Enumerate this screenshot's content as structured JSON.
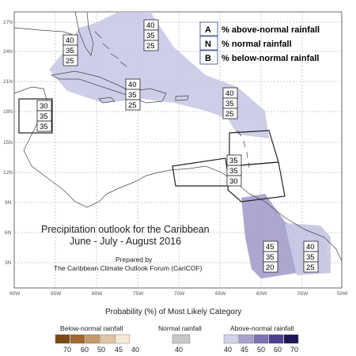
{
  "map": {
    "title": "Precipitation outlook for the Caribbean",
    "period": "June - July - August 2016",
    "prepared_by": "Prepared by",
    "organization": "The Caribbean Climate Outlook Forum (CariCOF)",
    "lat_ticks": [
      "27N",
      "24N",
      "21N",
      "18N",
      "15N",
      "12N",
      "9N",
      "6N",
      "3N"
    ],
    "lon_ticks": [
      "90W",
      "85W",
      "80W",
      "75W",
      "70W",
      "65W",
      "60W",
      "55W",
      "50W"
    ],
    "colors": {
      "above_light": "#c9c9e6",
      "above_medium": "#a8a2cf",
      "region_outline": "#222222",
      "coast": "#444444",
      "grid": "#999999"
    }
  },
  "key": [
    {
      "letter": "A",
      "text": "% above-normal rainfall"
    },
    {
      "letter": "N",
      "text": "% normal rainfall"
    },
    {
      "letter": "B",
      "text": "% below-normal rainfall"
    }
  ],
  "regions": [
    {
      "name": "bahamas-florida",
      "values": [
        "40",
        "35",
        "25"
      ]
    },
    {
      "name": "north-bahamas",
      "values": [
        "40",
        "35",
        "25"
      ]
    },
    {
      "name": "greater-antilles",
      "values": [
        "40",
        "35",
        "25"
      ]
    },
    {
      "name": "belize-yucatan",
      "values": [
        "30",
        "35",
        "35"
      ]
    },
    {
      "name": "northern-leeward",
      "values": [
        "40",
        "35",
        "25"
      ]
    },
    {
      "name": "southern-caribbean",
      "values": [
        "35",
        "35",
        "30"
      ]
    },
    {
      "name": "guyana-suriname",
      "values": [
        "45",
        "35",
        "20"
      ]
    },
    {
      "name": "french-guiana",
      "values": [
        "40",
        "35",
        "25"
      ]
    }
  ],
  "legend": {
    "title": "Probability (%) of Most Likely Category",
    "below": {
      "label": "Below-normal rainfall",
      "values": [
        "70",
        "60",
        "50",
        "45",
        "40"
      ],
      "colors": [
        "#7a4a12",
        "#a0692f",
        "#c49a6a",
        "#e3c7a4",
        "#f6e9d8"
      ]
    },
    "normal": {
      "label": "Normal rainfall",
      "values": [
        "40"
      ],
      "colors": [
        "#c8c8c8"
      ]
    },
    "above": {
      "label": "Above-normal rainfall",
      "values": [
        "40",
        "45",
        "50",
        "60",
        "70"
      ],
      "colors": [
        "#d2d2ea",
        "#a8a2cf",
        "#7d72b3",
        "#4b3f8e",
        "#1d1656"
      ]
    }
  }
}
